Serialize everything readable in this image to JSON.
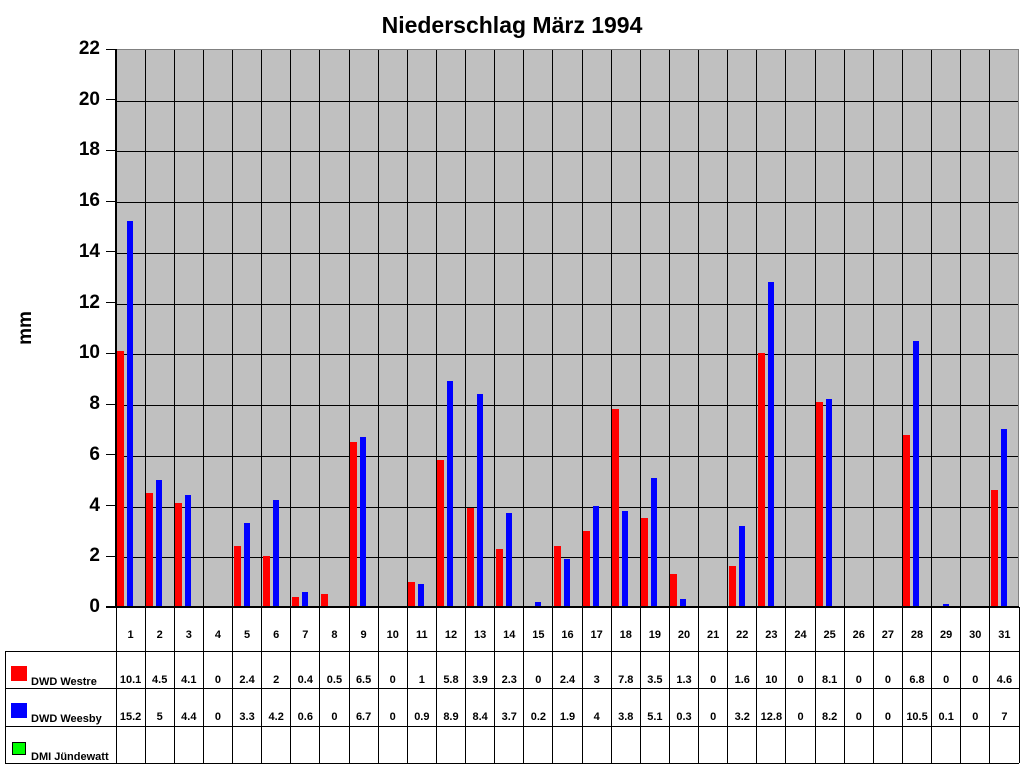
{
  "chart_data": {
    "type": "bar",
    "title": "Niederschlag März 1994",
    "xlabel": "",
    "ylabel": "mm",
    "ylim": [
      0,
      22
    ],
    "yticks": [
      0,
      2,
      4,
      6,
      8,
      10,
      12,
      14,
      16,
      18,
      20,
      22
    ],
    "grid": true,
    "legend_position": "bottom-table",
    "categories": [
      "1",
      "2",
      "3",
      "4",
      "5",
      "6",
      "7",
      "8",
      "9",
      "10",
      "11",
      "12",
      "13",
      "14",
      "15",
      "16",
      "17",
      "18",
      "19",
      "20",
      "21",
      "22",
      "23",
      "24",
      "25",
      "26",
      "27",
      "28",
      "29",
      "30",
      "31"
    ],
    "series": [
      {
        "name": "DWD Westre",
        "color": "#ff0000",
        "values": [
          10.1,
          4.5,
          4.1,
          0,
          2.4,
          2,
          0.4,
          0.5,
          6.5,
          0,
          1,
          5.8,
          3.9,
          2.3,
          0,
          2.4,
          3,
          7.8,
          3.5,
          1.3,
          0,
          1.6,
          10,
          0,
          8.1,
          0,
          0,
          6.8,
          0,
          0,
          4.6
        ]
      },
      {
        "name": "DWD Weesby",
        "color": "#0000ff",
        "values": [
          15.2,
          5,
          4.4,
          0,
          3.3,
          4.2,
          0.6,
          0,
          6.7,
          0,
          0.9,
          8.9,
          8.4,
          3.7,
          0.2,
          1.9,
          4,
          3.8,
          5.1,
          0.3,
          0,
          3.2,
          12.8,
          0,
          8.2,
          0,
          0,
          10.5,
          0.1,
          0,
          7
        ]
      },
      {
        "name": "DMI Jündewatt",
        "color": "#00ff00",
        "values": [
          null,
          null,
          null,
          null,
          null,
          null,
          null,
          null,
          null,
          null,
          null,
          null,
          null,
          null,
          null,
          null,
          null,
          null,
          null,
          null,
          null,
          null,
          null,
          null,
          null,
          null,
          null,
          null,
          null,
          null,
          null
        ]
      }
    ]
  },
  "colors": {
    "plot_background": "#c0c0c0",
    "westre": "#ff0000",
    "weesby": "#0000ff",
    "juendewatt": "#00ff00"
  }
}
